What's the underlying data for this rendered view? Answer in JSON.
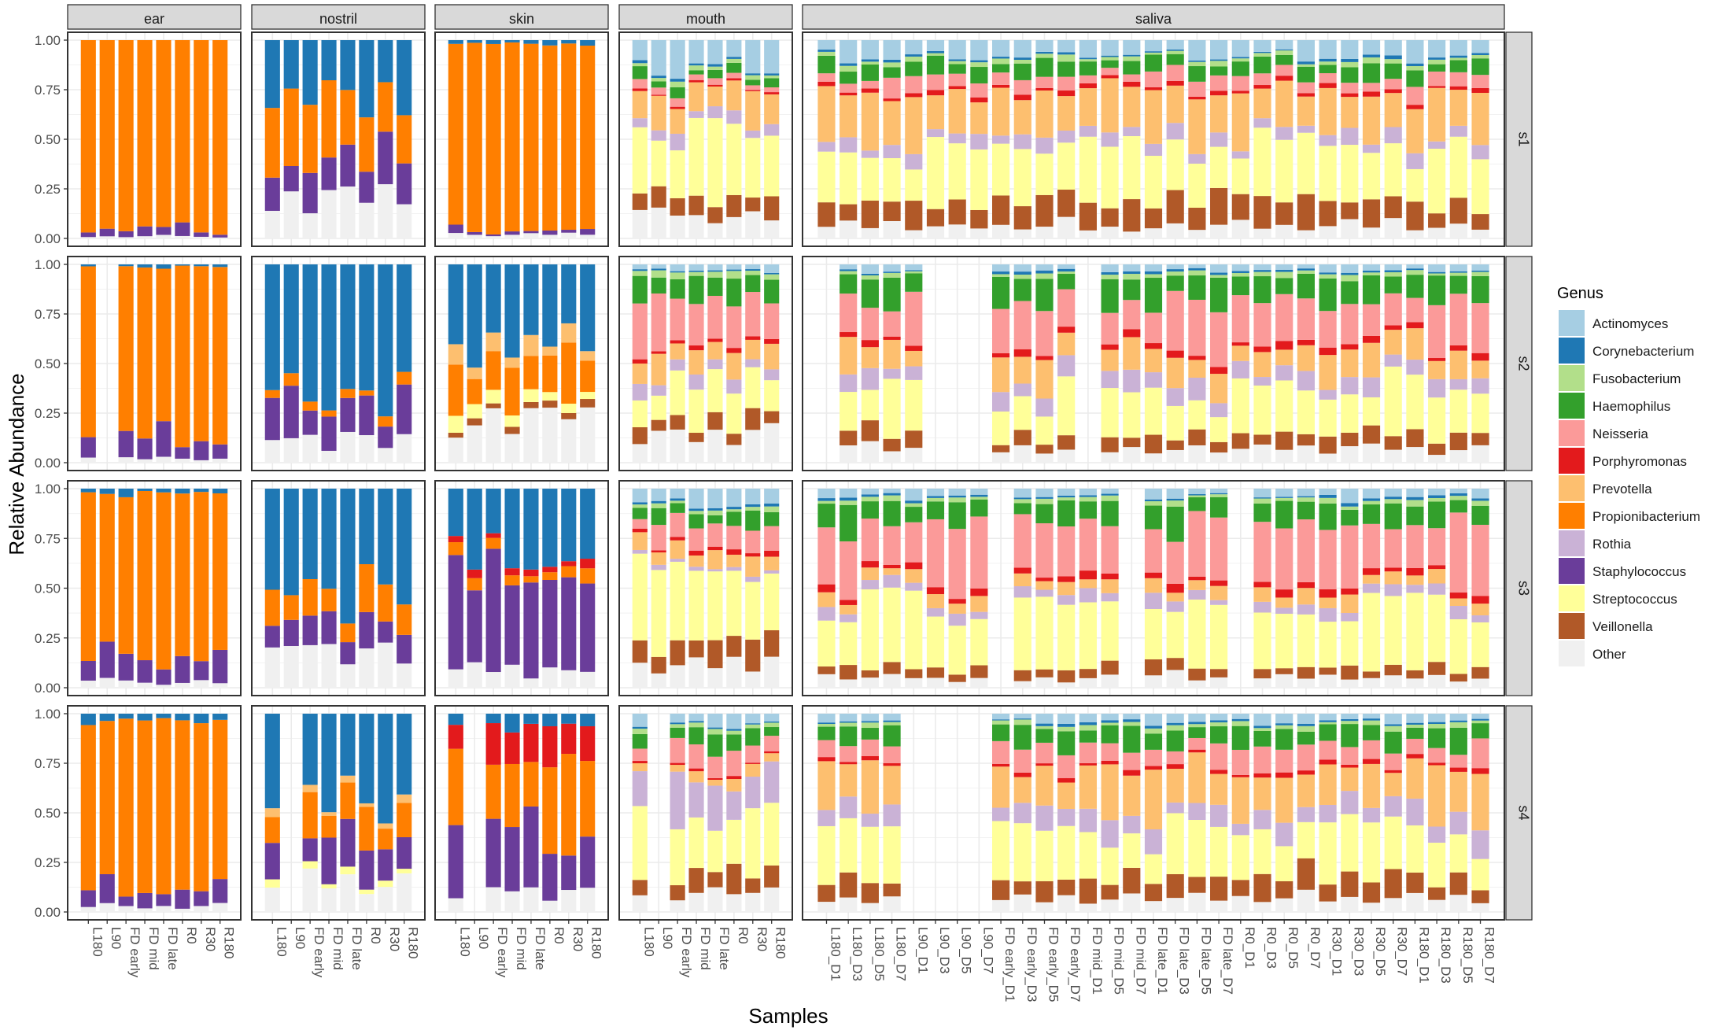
{
  "chart_data": {
    "type": "bar",
    "stacked": true,
    "xlabel": "Samples",
    "ylabel": "Relative Abundance",
    "ylim": [
      0,
      1
    ],
    "y_ticks": [
      "0.00",
      "0.25",
      "0.50",
      "0.75",
      "1.00"
    ],
    "legend": {
      "title": "Genus",
      "position": "right",
      "entries": [
        {
          "name": "Actinomyces",
          "color": "#a6cee3"
        },
        {
          "name": "Corynebacterium",
          "color": "#1f78b4"
        },
        {
          "name": "Fusobacterium",
          "color": "#b2df8a"
        },
        {
          "name": "Haemophilus",
          "color": "#33a02c"
        },
        {
          "name": "Neisseria",
          "color": "#fb9a99"
        },
        {
          "name": "Porphyromonas",
          "color": "#e31a1c"
        },
        {
          "name": "Prevotella",
          "color": "#fdbf6f"
        },
        {
          "name": "Propionibacterium",
          "color": "#ff7f00"
        },
        {
          "name": "Rothia",
          "color": "#cab2d6"
        },
        {
          "name": "Staphylococcus",
          "color": "#6a3d9a"
        },
        {
          "name": "Streptococcus",
          "color": "#ffff99"
        },
        {
          "name": "Veillonella",
          "color": "#b15928"
        },
        {
          "name": "Other",
          "color": "#f0f0f0"
        }
      ]
    },
    "stack_order": [
      "Other",
      "Veillonella",
      "Streptococcus",
      "Staphylococcus",
      "Rothia",
      "Propionibacterium",
      "Prevotella",
      "Porphyromonas",
      "Neisseria",
      "Haemophilus",
      "Fusobacterium",
      "Corynebacterium",
      "Actinomyces"
    ],
    "subjects": [
      "s1",
      "s2",
      "s3",
      "s4"
    ],
    "sites": [
      {
        "name": "ear",
        "samples": [
          "L180",
          "L90",
          "FD early",
          "FD mid",
          "FD late",
          "R0",
          "R30",
          "R180"
        ]
      },
      {
        "name": "nostril",
        "samples": [
          "L180",
          "L90",
          "FD early",
          "FD mid",
          "FD late",
          "R0",
          "R30",
          "R180"
        ]
      },
      {
        "name": "skin",
        "samples": [
          "L180",
          "L90",
          "FD early",
          "FD mid",
          "FD late",
          "R0",
          "R30",
          "R180"
        ]
      },
      {
        "name": "mouth",
        "samples": [
          "L180",
          "L90",
          "FD early",
          "FD mid",
          "FD late",
          "R0",
          "R30",
          "R180"
        ]
      },
      {
        "name": "saliva",
        "samples": [
          "L180_D1",
          "L180_D3",
          "L180_D5",
          "L180_D7",
          "L90_D1",
          "L90_D3",
          "L90_D5",
          "L90_D7",
          "FD early_D1",
          "FD early_D3",
          "FD early_D5",
          "FD early_D7",
          "FD mid_D1",
          "FD mid_D5",
          "FD mid_D7",
          "FD late_D1",
          "FD late_D3",
          "FD late_D5",
          "FD late_D7",
          "R0_D1",
          "R0_D3",
          "R0_D5",
          "R0_D7",
          "R30_D1",
          "R30_D3",
          "R30_D5",
          "R30_D7",
          "R180_D1",
          "R180_D3",
          "R180_D5",
          "R180_D7"
        ]
      }
    ],
    "profiles": {
      "ear": {
        "s1": {
          "Other": 0.01,
          "Staphylococcus": 0.03,
          "Propionibacterium": 0.96
        },
        "s2": {
          "Other": 0.02,
          "Staphylococcus": 0.09,
          "Propionibacterium": 0.88,
          "Corynebacterium": 0.01
        },
        "s3": {
          "Other": 0.03,
          "Staphylococcus": 0.14,
          "Propionibacterium": 0.81,
          "Corynebacterium": 0.02
        },
        "s4": {
          "Other": 0.03,
          "Staphylococcus": 0.07,
          "Propionibacterium": 0.87,
          "Corynebacterium": 0.03
        }
      },
      "nostril": {
        "s1": {
          "Other": 0.2,
          "Staphylococcus": 0.18,
          "Propionibacterium": 0.32,
          "Corynebacterium": 0.3
        },
        "s2": {
          "Other": 0.1,
          "Staphylococcus": 0.18,
          "Propionibacterium": 0.04,
          "Corynebacterium": 0.68
        },
        "s3": {
          "Other": 0.18,
          "Staphylococcus": 0.12,
          "Propionibacterium": 0.16,
          "Corynebacterium": 0.54
        },
        "s4": {
          "Other": 0.15,
          "Streptococcus": 0.03,
          "Staphylococcus": 0.17,
          "Propionibacterium": 0.18,
          "Prevotella": 0.03,
          "Corynebacterium": 0.44
        }
      },
      "skin": {
        "s1": {
          "Other": 0.02,
          "Staphylococcus": 0.02,
          "Propionibacterium": 0.94,
          "Corynebacterium": 0.02
        },
        "s2": {
          "Other": 0.22,
          "Veillonella": 0.03,
          "Streptococcus": 0.06,
          "Prevotella": 0.08,
          "Propionibacterium": 0.2,
          "Corynebacterium": 0.41
        },
        "s3": {
          "Other": 0.08,
          "Staphylococcus": 0.5,
          "Porphyromonas": 0.03,
          "Propionibacterium": 0.05,
          "Corynebacterium": 0.34
        },
        "s4": {
          "Other": 0.1,
          "Staphylococcus": 0.28,
          "Porphyromonas": 0.18,
          "Propionibacterium": 0.38,
          "Corynebacterium": 0.06
        }
      },
      "mouth": {
        "s1": {
          "Other": 0.12,
          "Veillonella": 0.09,
          "Streptococcus": 0.33,
          "Rothia": 0.05,
          "Prevotella": 0.16,
          "Porphyromonas": 0.01,
          "Neisseria": 0.03,
          "Haemophilus": 0.04,
          "Fusobacterium": 0.02,
          "Corynebacterium": 0.01,
          "Actinomyces": 0.14
        },
        "s2": {
          "Other": 0.15,
          "Veillonella": 0.08,
          "Streptococcus": 0.2,
          "Rothia": 0.06,
          "Prevotella": 0.1,
          "Porphyromonas": 0.02,
          "Neisseria": 0.2,
          "Haemophilus": 0.12,
          "Fusobacterium": 0.03,
          "Corynebacterium": 0.01,
          "Actinomyces": 0.03
        },
        "s3": {
          "Other": 0.13,
          "Veillonella": 0.1,
          "Streptococcus": 0.37,
          "Rothia": 0.02,
          "Prevotella": 0.08,
          "Porphyromonas": 0.02,
          "Neisseria": 0.1,
          "Haemophilus": 0.07,
          "Fusobacterium": 0.02,
          "Corynebacterium": 0.01,
          "Actinomyces": 0.08
        },
        "s4": {
          "Other": 0.1,
          "Veillonella": 0.1,
          "Streptococcus": 0.28,
          "Rothia": 0.2,
          "Prevotella": 0.05,
          "Porphyromonas": 0.01,
          "Neisseria": 0.09,
          "Haemophilus": 0.09,
          "Fusobacterium": 0.02,
          "Corynebacterium": 0.01,
          "Actinomyces": 0.05
        }
      },
      "saliva": {
        "s1": {
          "Other": 0.06,
          "Veillonella": 0.13,
          "Streptococcus": 0.27,
          "Rothia": 0.06,
          "Prevotella": 0.22,
          "Porphyromonas": 0.02,
          "Neisseria": 0.06,
          "Haemophilus": 0.07,
          "Fusobacterium": 0.02,
          "Corynebacterium": 0.01,
          "Actinomyces": 0.08
        },
        "s2": {
          "Other": 0.07,
          "Veillonella": 0.07,
          "Streptococcus": 0.22,
          "Rothia": 0.08,
          "Prevotella": 0.13,
          "Porphyromonas": 0.03,
          "Neisseria": 0.21,
          "Haemophilus": 0.13,
          "Fusobacterium": 0.02,
          "Corynebacterium": 0.01,
          "Actinomyces": 0.03
        },
        "s3": {
          "Other": 0.05,
          "Veillonella": 0.05,
          "Streptococcus": 0.3,
          "Rothia": 0.05,
          "Prevotella": 0.06,
          "Porphyromonas": 0.03,
          "Neisseria": 0.28,
          "Haemophilus": 0.11,
          "Fusobacterium": 0.02,
          "Corynebacterium": 0.01,
          "Actinomyces": 0.04
        },
        "s4": {
          "Other": 0.07,
          "Veillonella": 0.1,
          "Streptococcus": 0.24,
          "Rothia": 0.1,
          "Prevotella": 0.2,
          "Porphyromonas": 0.02,
          "Neisseria": 0.1,
          "Haemophilus": 0.1,
          "Fusobacterium": 0.02,
          "Corynebacterium": 0.01,
          "Actinomyces": 0.04
        }
      }
    },
    "missing_samples": {
      "ear": {
        "s2": [
          "L90"
        ]
      },
      "nostril": {
        "s4": [
          "L90"
        ]
      },
      "skin": {
        "s4": [
          "L90"
        ]
      },
      "mouth": {
        "s4": [
          "L90"
        ]
      },
      "saliva": {
        "s1": [],
        "s2": [
          "L180_D1",
          "L90_D3",
          "L90_D5",
          "L90_D7",
          "FD mid_D1"
        ],
        "s3": [
          "FD early_D1",
          "FD mid_D7",
          "R0_D1"
        ],
        "s4": [
          "L90_D1",
          "L90_D3",
          "L90_D5",
          "L90_D7"
        ]
      }
    }
  }
}
